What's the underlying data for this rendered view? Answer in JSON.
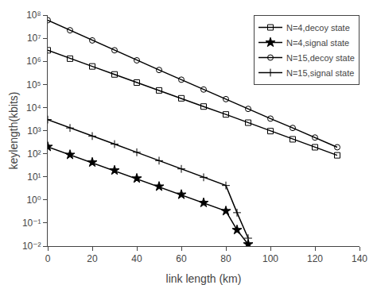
{
  "chart_data": {
    "type": "line",
    "xlabel": "link length (km)",
    "ylabel": "keylength(kbits)",
    "log": "y",
    "grid": false,
    "legend": "upper right",
    "xlim": [
      0,
      140
    ],
    "xticks": [
      0,
      20,
      40,
      60,
      80,
      100,
      120,
      140
    ],
    "ylim": [
      0.01,
      100000000
    ],
    "yticks": [
      {
        "value": 0.01,
        "label": "10⁻²"
      },
      {
        "value": 0.1,
        "label": "10⁻¹"
      },
      {
        "value": 1,
        "label": "10⁰"
      },
      {
        "value": 10,
        "label": "10¹"
      },
      {
        "value": 100,
        "label": "10²"
      },
      {
        "value": 1000,
        "label": "10³"
      },
      {
        "value": 10000,
        "label": "10⁴"
      },
      {
        "value": 100000,
        "label": "10⁵"
      },
      {
        "value": 1000000,
        "label": "10⁶"
      },
      {
        "value": 10000000,
        "label": "10⁷"
      },
      {
        "value": 100000000,
        "label": "10⁸"
      }
    ],
    "series": [
      {
        "name": "N=4,decoy state",
        "color": "#000000",
        "marker": "square-open",
        "line_style": "solid",
        "x": [
          0,
          10,
          20,
          30,
          40,
          50,
          60,
          70,
          80,
          90,
          100,
          110,
          120,
          130
        ],
        "values": [
          3000000,
          1300000,
          600000,
          270000,
          120000,
          55000,
          25000,
          11000,
          5000,
          2200,
          950,
          420,
          190,
          85
        ]
      },
      {
        "name": "N=4,signal state",
        "color": "#000000",
        "marker": "star",
        "line_style": "solid",
        "x": [
          0,
          10,
          20,
          30,
          40,
          50,
          60,
          70,
          80,
          85,
          90
        ],
        "values": [
          200,
          90,
          42,
          19,
          8.5,
          3.8,
          1.7,
          0.75,
          0.33,
          0.05,
          0.012
        ]
      },
      {
        "name": "N=15,decoy state",
        "color": "#000000",
        "marker": "circle-open",
        "line_style": "solid",
        "x": [
          0,
          10,
          20,
          30,
          40,
          50,
          60,
          70,
          80,
          90,
          100,
          110,
          120,
          130
        ],
        "values": [
          60000000,
          22000000,
          8000000,
          3000000,
          1100000,
          420000,
          160000,
          60000,
          23000,
          8700,
          3300,
          1300,
          500,
          190
        ]
      },
      {
        "name": "N=15,signal state",
        "color": "#000000",
        "marker": "cross-thin-open",
        "line_style": "solid",
        "x": [
          0,
          10,
          20,
          30,
          40,
          50,
          60,
          70,
          80,
          85,
          90
        ],
        "values": [
          3000,
          1300,
          580,
          260,
          115,
          50,
          22,
          9.5,
          4.2,
          0.28,
          0.022
        ]
      }
    ]
  }
}
